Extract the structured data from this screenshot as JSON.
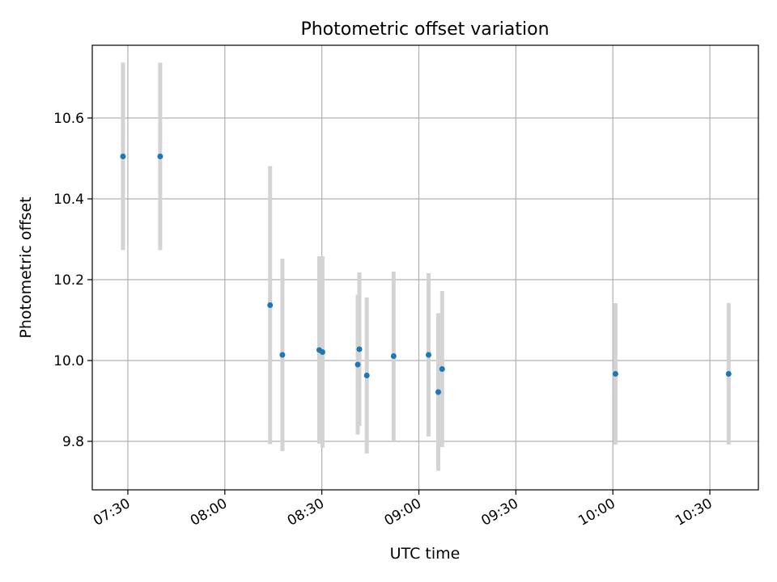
{
  "chart_data": {
    "type": "scatter",
    "title": "Photometric offset variation",
    "xlabel": "UTC time",
    "ylabel": "Photometric offset",
    "xlim": [
      "07:19",
      "10:45"
    ],
    "ylim": [
      9.68,
      10.78
    ],
    "xticks": [
      "07:30",
      "08:00",
      "08:30",
      "09:00",
      "09:30",
      "10:00",
      "10:30"
    ],
    "yticks": [
      9.8,
      10.0,
      10.2,
      10.4,
      10.6
    ],
    "ytick_labels": [
      "9.8",
      "10.0",
      "10.2",
      "10.4",
      "10.6"
    ],
    "grid": true,
    "points": [
      {
        "t": "07:28.5",
        "y": 10.505,
        "err": 0.232
      },
      {
        "t": "07:40.0",
        "y": 10.505,
        "err": 0.232
      },
      {
        "t": "08:14.0",
        "y": 10.137,
        "err": 0.344
      },
      {
        "t": "08:17.8",
        "y": 10.014,
        "err": 0.238
      },
      {
        "t": "08:29.2",
        "y": 10.026,
        "err": 0.232
      },
      {
        "t": "08:30.2",
        "y": 10.021,
        "err": 0.237
      },
      {
        "t": "08:41.1",
        "y": 9.99,
        "err": 0.173
      },
      {
        "t": "08:41.6",
        "y": 10.028,
        "err": 0.19
      },
      {
        "t": "08:43.9",
        "y": 9.963,
        "err": 0.193
      },
      {
        "t": "08:52.2",
        "y": 10.011,
        "err": 0.209
      },
      {
        "t": "09:03.0",
        "y": 10.014,
        "err": 0.202
      },
      {
        "t": "09:06.0",
        "y": 9.922,
        "err": 0.195
      },
      {
        "t": "09:07.2",
        "y": 9.979,
        "err": 0.193
      },
      {
        "t": "10:00.8",
        "y": 9.967,
        "err": 0.175
      },
      {
        "t": "10:35.8",
        "y": 9.967,
        "err": 0.175
      }
    ],
    "marker_color": "#1f77b4",
    "errorbar_color": "#d3d3d3",
    "grid_color": "#b0b0b0"
  }
}
